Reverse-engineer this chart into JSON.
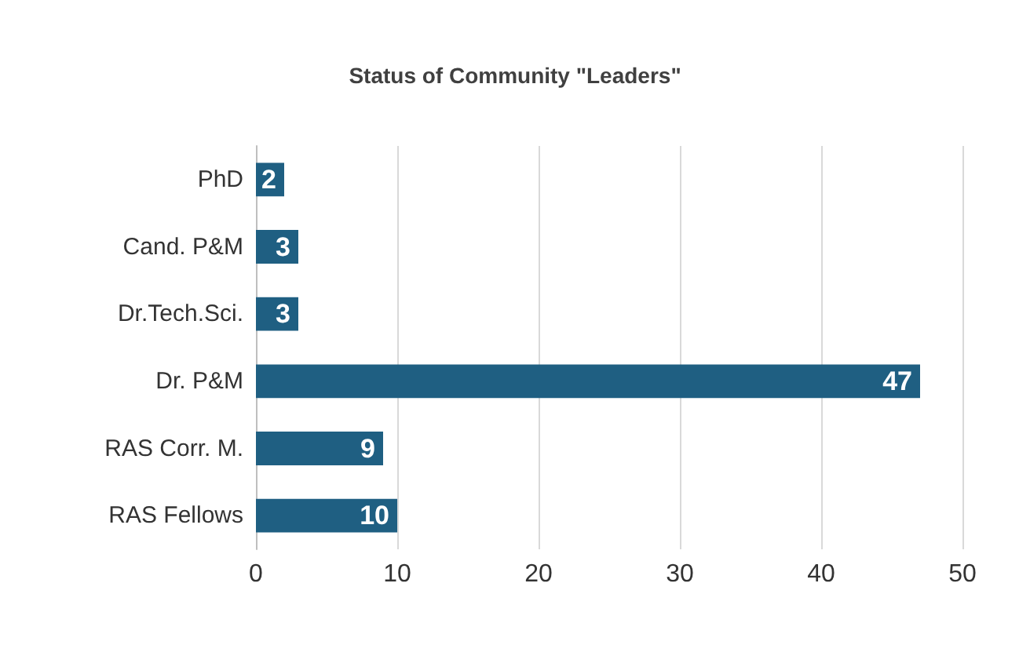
{
  "chart_data": {
    "type": "bar",
    "orientation": "horizontal",
    "title": "Status of Community \"Leaders\"",
    "categories": [
      "PhD",
      "Cand. P&M",
      "Dr.Tech.Sci.",
      "Dr. P&M",
      "RAS Corr. M.",
      "RAS Fellows"
    ],
    "values": [
      2,
      3,
      3,
      47,
      9,
      10
    ],
    "color": "#1f5f82",
    "xlim": [
      0,
      50
    ],
    "xticks": [
      0,
      10,
      20,
      30,
      40,
      50
    ],
    "grid": "x",
    "data_labels": true
  }
}
